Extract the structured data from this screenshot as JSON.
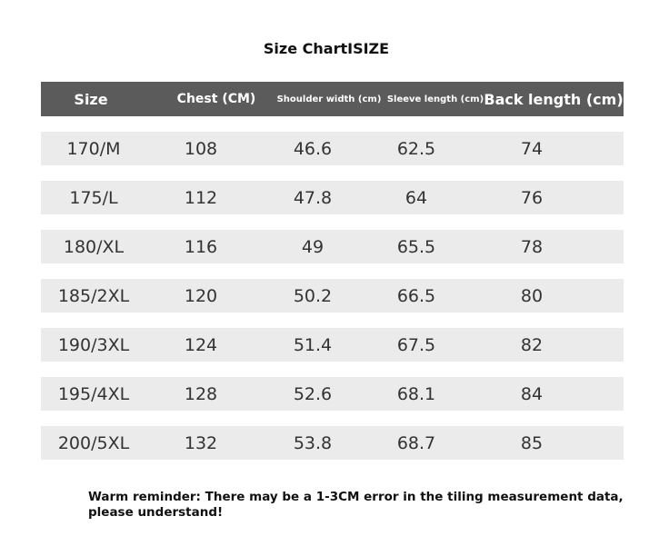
{
  "title": "Size ChartISIZE",
  "table": {
    "header": [
      "Size",
      "Chest (CM)",
      "Shoulder width (cm)",
      "Sleeve length (cm)",
      "Back length (cm)"
    ],
    "rows": [
      [
        "170/M",
        "108",
        "46.6",
        "62.5",
        "74"
      ],
      [
        "175/L",
        "112",
        "47.8",
        "64",
        "76"
      ],
      [
        "180/XL",
        "116",
        "49",
        "65.5",
        "78"
      ],
      [
        "185/2XL",
        "120",
        "50.2",
        "66.5",
        "80"
      ],
      [
        "190/3XL",
        "124",
        "51.4",
        "67.5",
        "82"
      ],
      [
        "195/4XL",
        "128",
        "52.6",
        "68.1",
        "84"
      ],
      [
        "200/5XL",
        "132",
        "53.8",
        "68.7",
        "85"
      ]
    ]
  },
  "note": [
    "Warm reminder: There may be a 1-3CM error in the tiling measurement data,",
    "please understand!"
  ]
}
